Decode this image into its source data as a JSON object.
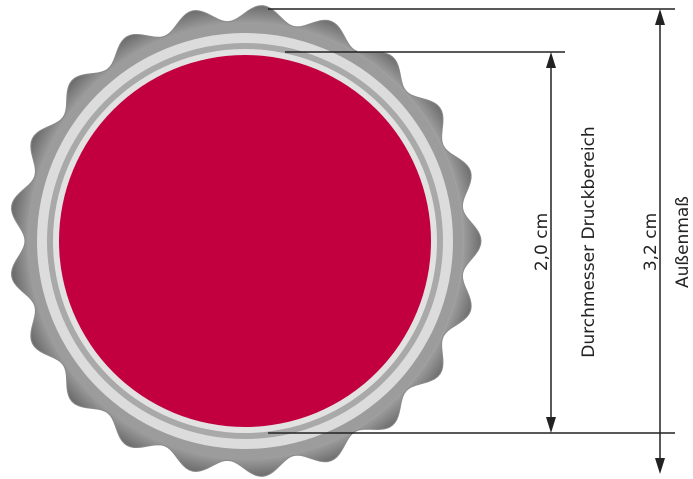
{
  "diagram": {
    "inner_dimension": {
      "value": "2,0 cm",
      "label": "Durchmesser Druckbereich"
    },
    "outer_dimension": {
      "value": "3,2 cm",
      "label": "Außenmaß"
    }
  },
  "colors": {
    "print_area": "#c2003f",
    "cap_light": "#e6e6e6",
    "cap_mid": "#a8a8a8",
    "cap_dark": "#6e6e6e",
    "line": "#222222"
  }
}
